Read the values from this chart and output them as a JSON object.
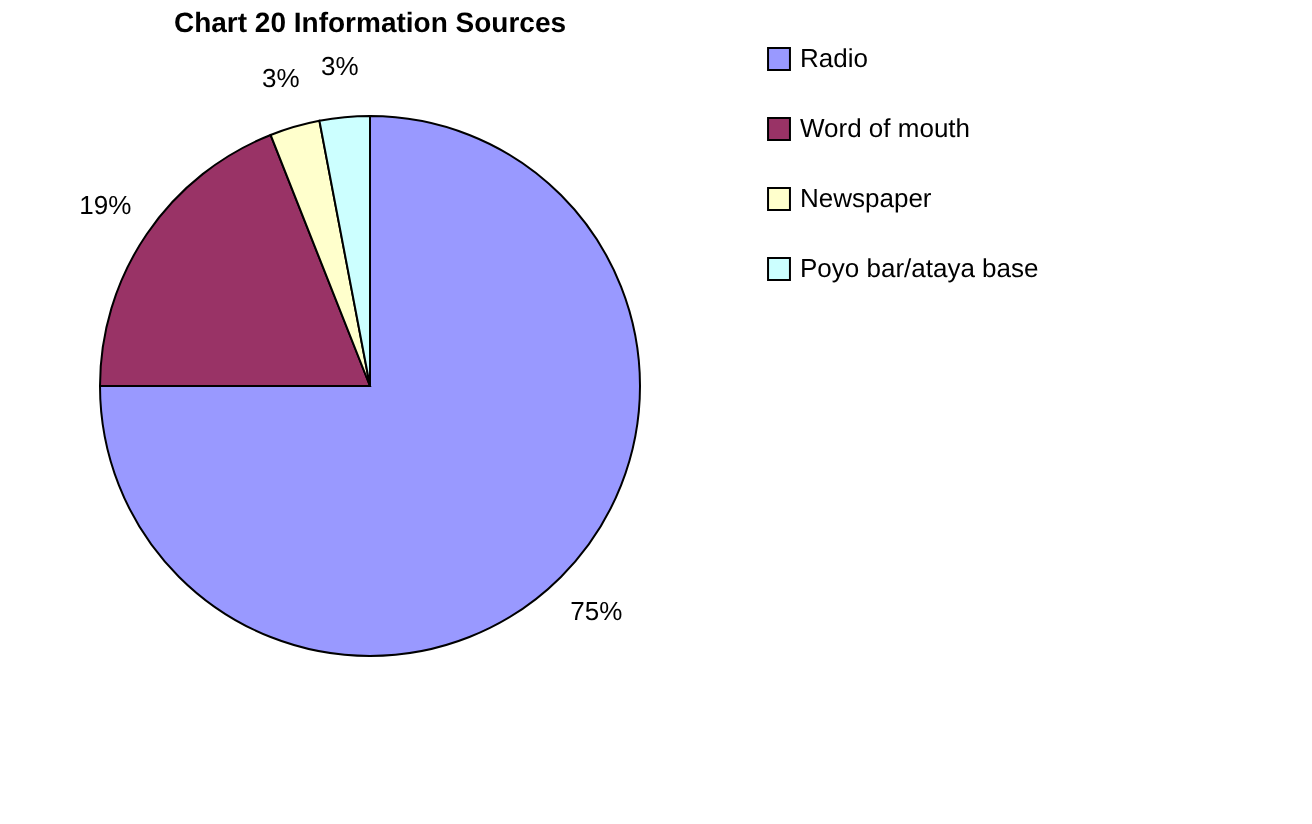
{
  "chart_data": {
    "type": "pie",
    "title": "Chart 20 Information Sources",
    "categories": [
      "Radio",
      "Word of mouth",
      "Newspaper",
      "Poyo bar/ataya base"
    ],
    "values": [
      75,
      19,
      3,
      3
    ],
    "colors": [
      "#9999ff",
      "#993366",
      "#ffffcc",
      "#ccffff"
    ],
    "value_labels": [
      "75%",
      "19%",
      "3%",
      "3%"
    ],
    "legend": "right"
  }
}
